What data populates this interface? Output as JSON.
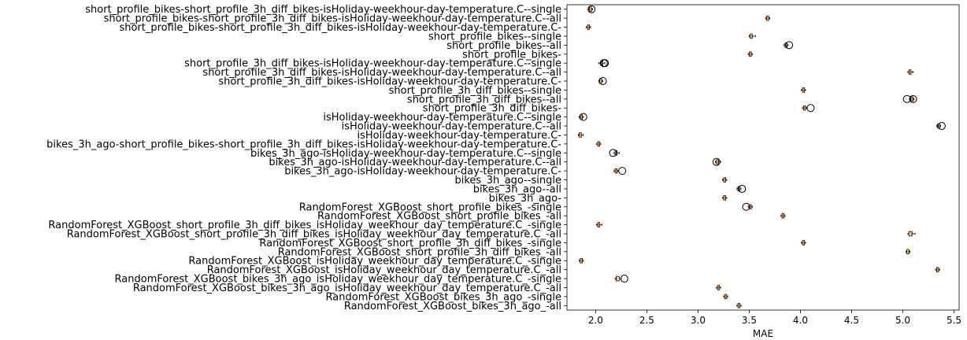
{
  "chart_data": {
    "type": "boxplot",
    "orientation": "horizontal",
    "xlabel": "MAE",
    "xlim": [
      1.72,
      5.55
    ],
    "xticks": [
      2.0,
      2.5,
      3.0,
      3.5,
      4.0,
      4.5,
      5.0,
      5.5
    ],
    "xtick_labels": [
      "2.0",
      "2.5",
      "3.0",
      "3.5",
      "4.0",
      "4.5",
      "5.0",
      "5.5"
    ],
    "grid": false,
    "box_color": "#000000",
    "median_color": "#ff7f0e",
    "categories": [
      "short_profile_bikes-short_profile_3h_diff_bikes-isHoliday-weekhour-day-temperature.C--single",
      "short_profile_bikes-short_profile_3h_diff_bikes-isHoliday-weekhour-day-temperature.C--all",
      "short_profile_bikes-short_profile_3h_diff_bikes-isHoliday-weekhour-day-temperature.C-",
      "short_profile_bikes--single",
      "short_profile_bikes--all",
      "short_profile_bikes-",
      "short_profile_3h_diff_bikes-isHoliday-weekhour-day-temperature.C--single",
      "short_profile_3h_diff_bikes-isHoliday-weekhour-day-temperature.C--all",
      "short_profile_3h_diff_bikes-isHoliday-weekhour-day-temperature.C-",
      "short_profile_3h_diff_bikes--single",
      "short_profile_3h_diff_bikes--all",
      "short_profile_3h_diff_bikes-",
      "isHoliday-weekhour-day-temperature.C--single",
      "isHoliday-weekhour-day-temperature.C--all",
      "isHoliday-weekhour-day-temperature.C-",
      "bikes_3h_ago-short_profile_bikes-short_profile_3h_diff_bikes-isHoliday-weekhour-day-temperature.C-",
      "bikes_3h_ago-isHoliday-weekhour-day-temperature.C--single",
      "bikes_3h_ago-isHoliday-weekhour-day-temperature.C--all",
      "bikes_3h_ago-isHoliday-weekhour-day-temperature.C-",
      "bikes_3h_ago--single",
      "bikes_3h_ago--all",
      "bikes_3h_ago-",
      "RandomForest_XGBoost_short_profile_bikes_-single",
      "RandomForest_XGBoost_short_profile_bikes_-all",
      "RandomForest_XGBoost_short_profile_3h_diff_bikes_isHoliday_weekhour_day_temperature.C_-single",
      "RandomForest_XGBoost_short_profile_3h_diff_bikes_isHoliday_weekhour_day_temperature.C_-all",
      "RandomForest_XGBoost_short_profile_3h_diff_bikes_-single",
      "RandomForest_XGBoost_short_profile_3h_diff_bikes_-all",
      "RandomForest_XGBoost_isHoliday_weekhour_day_temperature.C_-single",
      "RandomForest_XGBoost_isHoliday_weekhour_day_temperature.C_-all",
      "RandomForest_XGBoost_bikes_3h_ago_isHoliday_weekhour_day_temperature.C_-single",
      "RandomForest_XGBoost_bikes_3h_ago_isHoliday_weekhour_day_temperature.C_-all",
      "RandomForest_XGBoost_bikes_3h_ago_-single",
      "RandomForest_XGBoost_bikes_3h_ago_-all"
    ],
    "boxes": [
      {
        "whislo": 1.93,
        "q1": 1.94,
        "med": 1.95,
        "q3": 1.96,
        "whishi": 1.97,
        "fliers": [
          1.96
        ]
      },
      {
        "whislo": 3.66,
        "q1": 3.67,
        "med": 3.68,
        "q3": 3.69,
        "whishi": 3.7,
        "fliers": []
      },
      {
        "whislo": 1.91,
        "q1": 1.92,
        "med": 1.93,
        "q3": 1.94,
        "whishi": 1.95,
        "fliers": []
      },
      {
        "whislo": 3.5,
        "q1": 3.51,
        "med": 3.52,
        "q3": 3.53,
        "whishi": 3.56,
        "fliers": []
      },
      {
        "whislo": 3.84,
        "q1": 3.85,
        "med": 3.86,
        "q3": 3.87,
        "whishi": 3.88,
        "fliers": [
          3.89
        ]
      },
      {
        "whislo": 3.49,
        "q1": 3.5,
        "med": 3.51,
        "q3": 3.52,
        "whishi": 3.53,
        "fliers": []
      },
      {
        "whislo": 2.03,
        "q1": 2.05,
        "med": 2.06,
        "q3": 2.07,
        "whishi": 2.09,
        "fliers": [
          2.08,
          2.09
        ]
      },
      {
        "whislo": 5.05,
        "q1": 5.06,
        "med": 5.07,
        "q3": 5.08,
        "whishi": 5.1,
        "fliers": []
      },
      {
        "whislo": 2.03,
        "q1": 2.04,
        "med": 2.05,
        "q3": 2.06,
        "whishi": 2.07,
        "fliers": [
          2.07
        ]
      },
      {
        "whislo": 4.01,
        "q1": 4.02,
        "med": 4.03,
        "q3": 4.04,
        "whishi": 4.05,
        "fliers": []
      },
      {
        "whislo": 5.07,
        "q1": 5.08,
        "med": 5.09,
        "q3": 5.1,
        "whishi": 5.11,
        "fliers": [
          5.04,
          5.1
        ]
      },
      {
        "whislo": 4.02,
        "q1": 4.03,
        "med": 4.04,
        "q3": 4.05,
        "whishi": 4.06,
        "fliers": [
          4.1
        ]
      },
      {
        "whislo": 1.84,
        "q1": 1.85,
        "med": 1.86,
        "q3": 1.87,
        "whishi": 1.88,
        "fliers": [
          1.88
        ]
      },
      {
        "whislo": 5.33,
        "q1": 5.34,
        "med": 5.35,
        "q3": 5.36,
        "whishi": 5.37,
        "fliers": [
          5.38
        ]
      },
      {
        "whislo": 1.83,
        "q1": 1.84,
        "med": 1.85,
        "q3": 1.86,
        "whishi": 1.88,
        "fliers": []
      },
      {
        "whislo": 2.01,
        "q1": 2.02,
        "med": 2.03,
        "q3": 2.04,
        "whishi": 2.05,
        "fliers": []
      },
      {
        "whislo": 2.18,
        "q1": 2.19,
        "med": 2.2,
        "q3": 2.21,
        "whishi": 2.23,
        "fliers": [
          2.17
        ]
      },
      {
        "whislo": 3.17,
        "q1": 3.18,
        "med": 3.19,
        "q3": 3.2,
        "whishi": 3.22,
        "fliers": [
          3.18
        ]
      },
      {
        "whislo": 2.18,
        "q1": 2.19,
        "med": 2.2,
        "q3": 2.21,
        "whishi": 2.22,
        "fliers": [
          2.26
        ]
      },
      {
        "whislo": 3.24,
        "q1": 3.25,
        "med": 3.26,
        "q3": 3.27,
        "whishi": 3.28,
        "fliers": []
      },
      {
        "whislo": 3.38,
        "q1": 3.39,
        "med": 3.4,
        "q3": 3.41,
        "whishi": 3.42,
        "fliers": [
          3.43
        ]
      },
      {
        "whislo": 3.24,
        "q1": 3.25,
        "med": 3.26,
        "q3": 3.27,
        "whishi": 3.28,
        "fliers": []
      },
      {
        "whislo": 3.49,
        "q1": 3.5,
        "med": 3.51,
        "q3": 3.52,
        "whishi": 3.53,
        "fliers": [
          3.47
        ]
      },
      {
        "whislo": 3.81,
        "q1": 3.82,
        "med": 3.83,
        "q3": 3.84,
        "whishi": 3.85,
        "fliers": []
      },
      {
        "whislo": 2.01,
        "q1": 2.02,
        "med": 2.03,
        "q3": 2.04,
        "whishi": 2.06,
        "fliers": []
      },
      {
        "whislo": 5.05,
        "q1": 5.06,
        "med": 5.08,
        "q3": 5.09,
        "whishi": 5.12,
        "fliers": []
      },
      {
        "whislo": 4.01,
        "q1": 4.02,
        "med": 4.03,
        "q3": 4.04,
        "whishi": 4.05,
        "fliers": []
      },
      {
        "whislo": 5.03,
        "q1": 5.04,
        "med": 5.05,
        "q3": 5.06,
        "whishi": 5.07,
        "fliers": []
      },
      {
        "whislo": 1.84,
        "q1": 1.85,
        "med": 1.86,
        "q3": 1.87,
        "whishi": 1.88,
        "fliers": []
      },
      {
        "whislo": 5.32,
        "q1": 5.33,
        "med": 5.34,
        "q3": 5.35,
        "whishi": 5.36,
        "fliers": []
      },
      {
        "whislo": 2.19,
        "q1": 2.2,
        "med": 2.21,
        "q3": 2.23,
        "whishi": 2.25,
        "fliers": [
          2.28
        ]
      },
      {
        "whislo": 3.18,
        "q1": 3.19,
        "med": 3.2,
        "q3": 3.21,
        "whishi": 3.22,
        "fliers": []
      },
      {
        "whislo": 3.25,
        "q1": 3.26,
        "med": 3.27,
        "q3": 3.28,
        "whishi": 3.29,
        "fliers": []
      },
      {
        "whislo": 3.38,
        "q1": 3.39,
        "med": 3.4,
        "q3": 3.41,
        "whishi": 3.42,
        "fliers": []
      }
    ]
  }
}
